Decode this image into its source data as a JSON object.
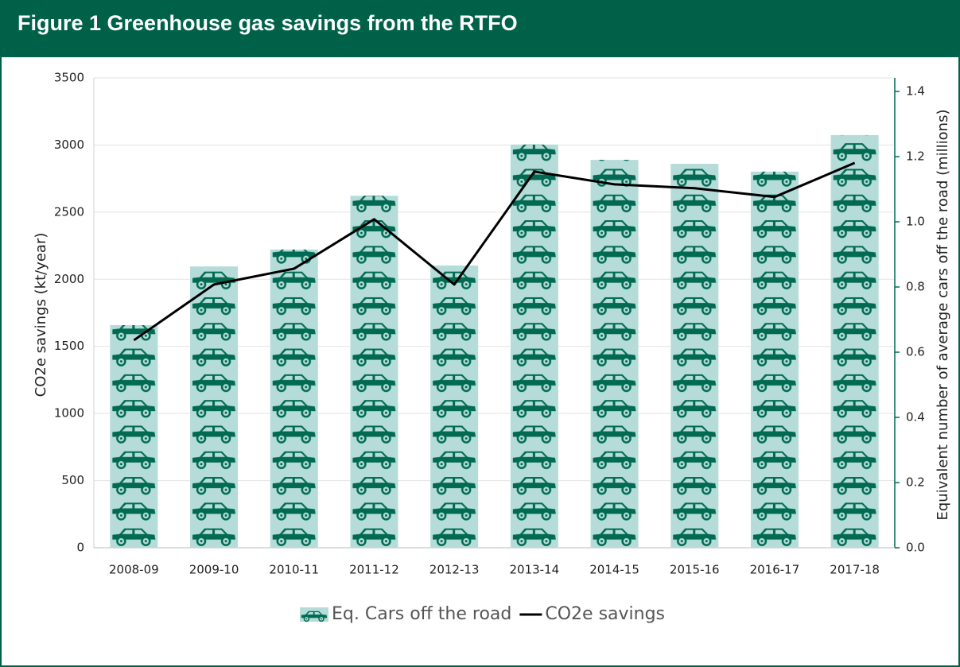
{
  "chart_data": {
    "type": "bar_line",
    "title": "Figure 1 Greenhouse gas savings from the RTFO",
    "y_label": "CO2e savings (kt/year)",
    "y2_label": "Equivalent number of average cars off the road (millions)",
    "categories": [
      "2008-09",
      "2009-10",
      "2010-11",
      "2011-12",
      "2012-13",
      "2013-14",
      "2014-15",
      "2015-16",
      "2016-17",
      "2017-18"
    ],
    "series": [
      {
        "name": "Eq. Cars off the road",
        "type": "bar",
        "axis": "y2",
        "color": "#b5dcd9",
        "pattern_color": "#006b52",
        "values": [
          0.683,
          0.863,
          0.915,
          1.08,
          0.866,
          1.237,
          1.19,
          1.178,
          1.154,
          1.266
        ]
      },
      {
        "name": "CO2e savings",
        "type": "line",
        "axis": "y",
        "color": "#000000",
        "values": [
          1546,
          1961,
          2079,
          2447,
          1961,
          2802,
          2707,
          2678,
          2613,
          2867
        ]
      }
    ],
    "ylim": [
      0,
      3500
    ],
    "yticks": [
      0,
      500,
      1000,
      1500,
      2000,
      2500,
      3000,
      3500
    ],
    "y2lim": [
      0,
      1.4415
    ],
    "y2ticks": [
      {
        "value": 0,
        "label": "0.0"
      },
      0.2,
      0.4,
      0.6,
      0.8,
      {
        "value": 1,
        "label": "1.0"
      },
      1.2,
      1.4
    ],
    "grid": true
  }
}
